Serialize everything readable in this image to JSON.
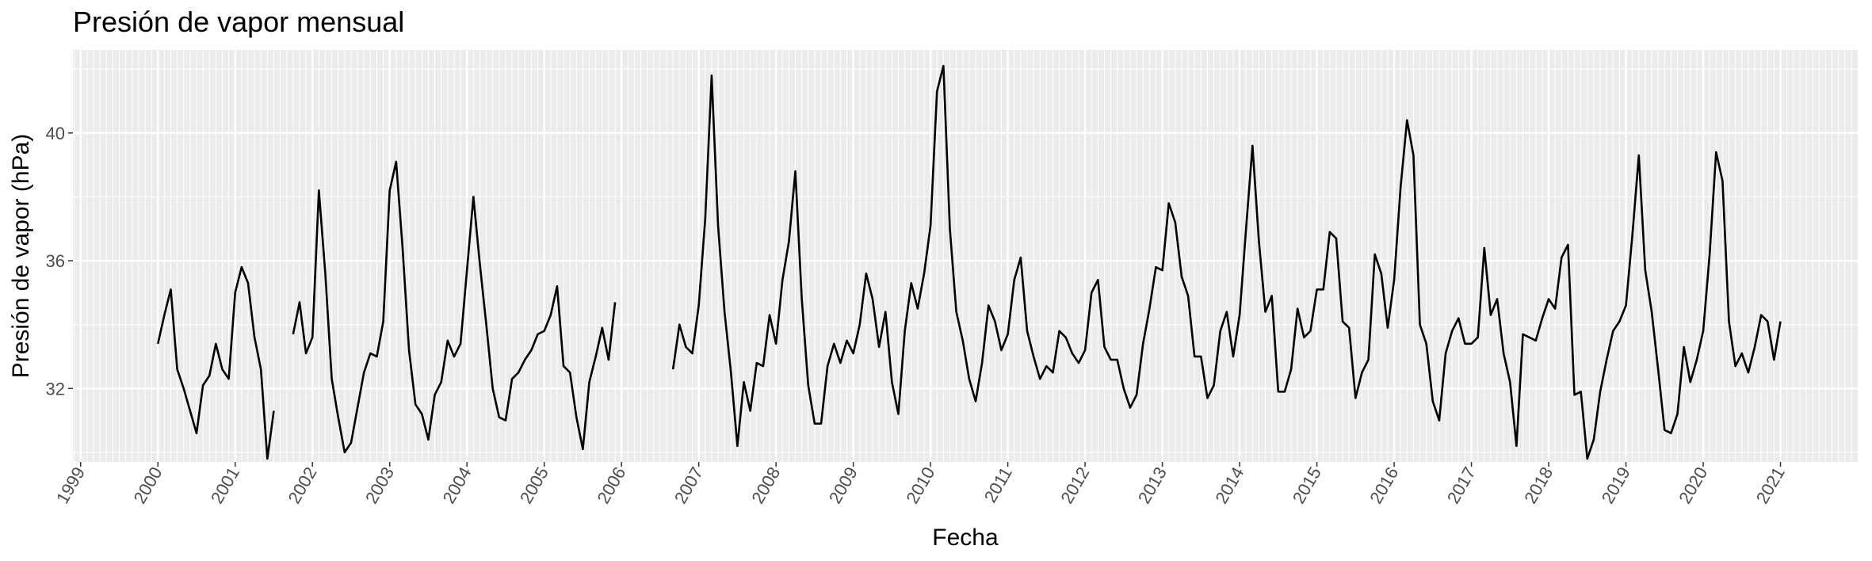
{
  "chart_data": {
    "type": "line",
    "title": "Presión de vapor mensual",
    "xlabel": "Fecha",
    "ylabel": "Presión de vapor (hPa)",
    "x_ticks": [
      "1999",
      "2000",
      "2001",
      "2002",
      "2003",
      "2004",
      "2005",
      "2006",
      "2007",
      "2008",
      "2009",
      "2010",
      "2011",
      "2012",
      "2013",
      "2014",
      "2015",
      "2016",
      "2017",
      "2018",
      "2019",
      "2020",
      "2021"
    ],
    "y_ticks": [
      32,
      36,
      40
    ],
    "xlim": [
      1998.9,
      2022.0
    ],
    "ylim": [
      29.7,
      42.6
    ],
    "grid": true,
    "minor_grid": "monthly",
    "start_year": 2000,
    "values": [
      33.4,
      34.3,
      35.1,
      32.6,
      32.0,
      31.3,
      30.6,
      32.1,
      32.4,
      33.4,
      32.6,
      32.3,
      35.0,
      35.8,
      35.3,
      33.6,
      32.6,
      29.8,
      31.3,
      null,
      null,
      33.7,
      34.7,
      33.1,
      33.6,
      38.2,
      35.6,
      32.3,
      31.1,
      30.0,
      30.3,
      31.4,
      32.5,
      33.1,
      33.0,
      34.1,
      38.2,
      39.1,
      36.4,
      33.2,
      31.5,
      31.2,
      30.4,
      31.8,
      32.2,
      33.5,
      33.0,
      33.4,
      35.7,
      38.0,
      35.9,
      34.0,
      32.0,
      31.1,
      31.0,
      32.3,
      32.5,
      32.9,
      33.2,
      33.7,
      33.8,
      34.3,
      35.2,
      32.7,
      32.5,
      31.1,
      30.1,
      32.2,
      33.0,
      33.9,
      32.9,
      34.7,
      null,
      null,
      null,
      null,
      null,
      null,
      null,
      null,
      32.6,
      34.0,
      33.3,
      33.1,
      34.6,
      37.3,
      41.8,
      37.1,
      34.4,
      32.5,
      30.2,
      32.2,
      31.3,
      32.8,
      32.7,
      34.3,
      33.4,
      35.4,
      36.6,
      38.8,
      34.8,
      32.1,
      30.9,
      30.9,
      32.7,
      33.4,
      32.8,
      33.5,
      33.1,
      34.0,
      35.6,
      34.8,
      33.3,
      34.4,
      32.2,
      31.2,
      33.8,
      35.3,
      34.5,
      35.6,
      37.1,
      41.3,
      42.1,
      37.0,
      34.4,
      33.5,
      32.3,
      31.6,
      32.8,
      34.6,
      34.1,
      33.2,
      33.7,
      35.4,
      36.1,
      33.8,
      33.0,
      32.3,
      32.7,
      32.5,
      33.8,
      33.6,
      33.1,
      32.8,
      33.2,
      35.0,
      35.4,
      33.3,
      32.9,
      32.9,
      32.0,
      31.4,
      31.8,
      33.4,
      34.5,
      35.8,
      35.7,
      37.8,
      37.2,
      35.5,
      34.9,
      33.0,
      33.0,
      31.7,
      32.1,
      33.8,
      34.4,
      33.0,
      34.3,
      37.0,
      39.6,
      36.6,
      34.4,
      34.9,
      31.9,
      31.9,
      32.6,
      34.5,
      33.6,
      33.8,
      35.1,
      35.1,
      36.9,
      36.7,
      34.1,
      33.9,
      31.7,
      32.5,
      32.9,
      36.2,
      35.6,
      33.9,
      35.4,
      38.3,
      40.4,
      39.3,
      34.0,
      33.4,
      31.6,
      31.0,
      33.1,
      33.8,
      34.2,
      33.4,
      33.4,
      33.6,
      36.4,
      34.3,
      34.8,
      33.1,
      32.2,
      30.2,
      33.7,
      33.6,
      33.5,
      34.2,
      34.8,
      34.5,
      36.1,
      36.5,
      31.8,
      31.9,
      29.8,
      30.4,
      31.9,
      32.9,
      33.8,
      34.1,
      34.6,
      36.8,
      39.3,
      35.7,
      34.4,
      32.6,
      30.7,
      30.6,
      31.2,
      33.3,
      32.2,
      32.9,
      33.8,
      36.2,
      39.4,
      38.5,
      34.1,
      32.7,
      33.1,
      32.5,
      33.3,
      34.3,
      34.1,
      32.9,
      34.1
    ]
  }
}
